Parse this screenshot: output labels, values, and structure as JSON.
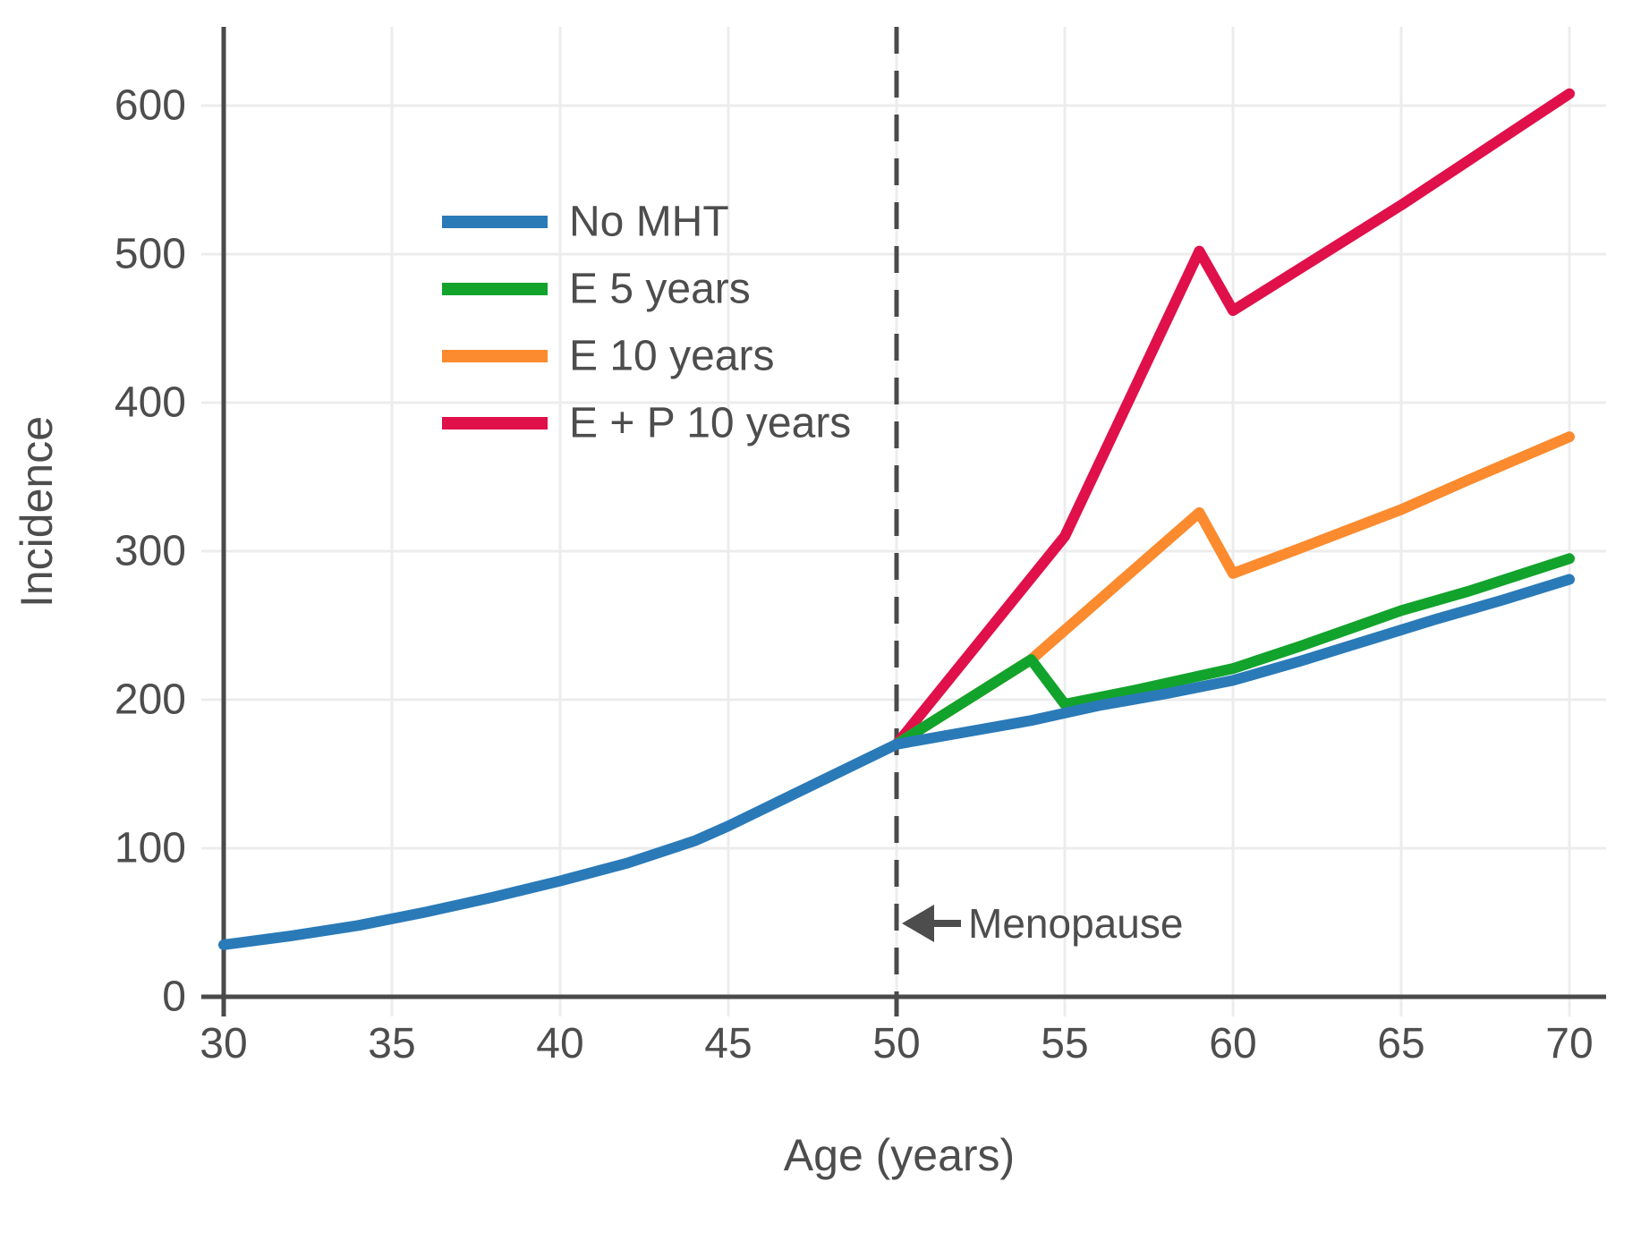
{
  "figure": {
    "background": "#ffffff",
    "text_color": "#4d4d4d",
    "axis_color": "#4a4a4a",
    "grid_color": "#ececec",
    "menopause_line_color": "#4a4a4a"
  },
  "chart_data": {
    "type": "line",
    "title": "",
    "xlabel": "Age (years)",
    "ylabel": "Incidence",
    "xlim": [
      28.5,
      71
    ],
    "ylim": [
      0,
      650
    ],
    "xticks": [
      30,
      35,
      40,
      45,
      50,
      55,
      60,
      65,
      70
    ],
    "yticks": [
      0,
      100,
      200,
      300,
      400,
      500,
      600
    ],
    "grid": true,
    "legend_position": "upper left inside plot",
    "series": [
      {
        "name": "No MHT",
        "color": "#2a7ab8",
        "x": [
          30,
          32,
          34,
          36,
          38,
          40,
          42,
          44,
          45,
          46,
          48,
          50,
          52,
          54,
          55,
          56,
          58,
          60,
          62,
          64,
          66,
          68,
          70
        ],
        "y": [
          35,
          41,
          48,
          57,
          67,
          78,
          90,
          105,
          115,
          126,
          148,
          170,
          178,
          186,
          191,
          196,
          204,
          213,
          226,
          240,
          254,
          267,
          281
        ]
      },
      {
        "name": "E 5 years",
        "color": "#12a32c",
        "x": [
          50,
          54,
          55,
          57,
          60,
          62,
          65,
          67,
          70
        ],
        "y": [
          170,
          227,
          197,
          206,
          221,
          236,
          260,
          273,
          295
        ]
      },
      {
        "name": "E 10 years",
        "color": "#fb8b2e",
        "x": [
          50,
          54,
          59,
          60,
          62,
          65,
          67,
          70
        ],
        "y": [
          170,
          227,
          326,
          285,
          302,
          328,
          348,
          377
        ]
      },
      {
        "name": "E + P 10 years",
        "color": "#e0104a",
        "x": [
          50,
          55,
          59,
          60,
          65,
          70
        ],
        "y": [
          170,
          310,
          502,
          462,
          533,
          608
        ]
      }
    ],
    "annotations": [
      {
        "type": "label-with-left-arrow",
        "text": "Menopause",
        "x": 52.1,
        "y": 49
      },
      {
        "type": "vline-dashed",
        "x": 50
      }
    ]
  }
}
